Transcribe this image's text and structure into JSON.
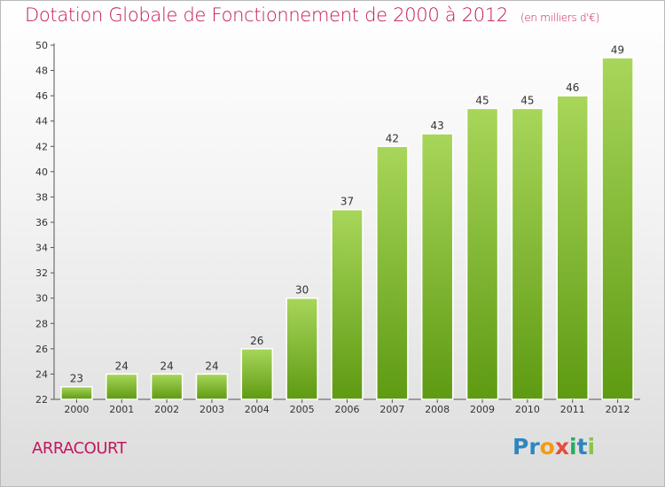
{
  "header": {
    "title": "Dotation Globale de Fonctionnement de 2000 à 2012",
    "subtitle": "(en milliers d'€)"
  },
  "footer": {
    "commune": "ARRACOURT",
    "logo": [
      "Pr",
      "o",
      "x",
      "i",
      "t",
      "i"
    ]
  },
  "colors": {
    "accent": "#c2185b",
    "bar_top": "#a8d65a",
    "bar_bottom": "#5e9a12"
  },
  "chart_data": {
    "type": "bar",
    "title": "Dotation Globale de Fonctionnement de 2000 à 2012",
    "subtitle": "(en milliers d'€)",
    "xlabel": "",
    "ylabel": "",
    "categories": [
      "2000",
      "2001",
      "2002",
      "2003",
      "2004",
      "2005",
      "2006",
      "2007",
      "2008",
      "2009",
      "2010",
      "2011",
      "2012"
    ],
    "values": [
      23,
      24,
      24,
      24,
      26,
      30,
      37,
      42,
      43,
      45,
      45,
      46,
      49
    ],
    "ylim": [
      22,
      50
    ],
    "yticks": [
      22,
      24,
      26,
      28,
      30,
      32,
      34,
      36,
      38,
      40,
      42,
      44,
      46,
      48,
      50
    ],
    "grid": false,
    "legend": "none"
  }
}
